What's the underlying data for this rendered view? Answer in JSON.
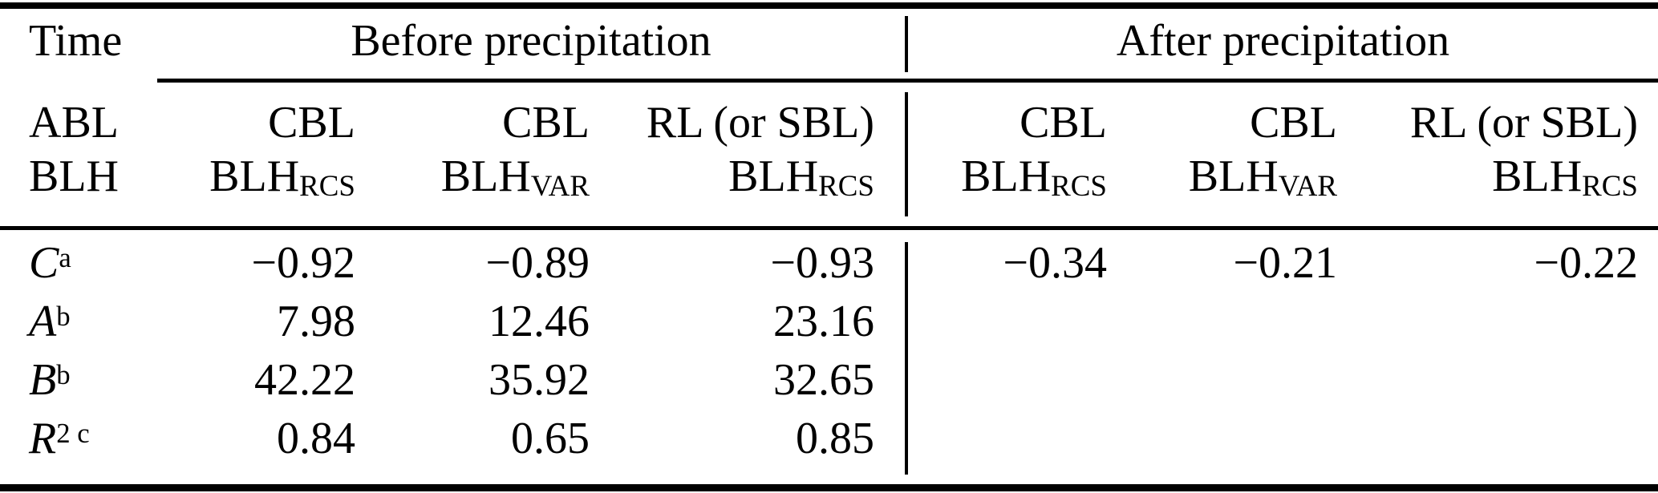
{
  "table": {
    "corner": {
      "time": "Time",
      "abl": "ABL",
      "blh": "BLH"
    },
    "groups": [
      {
        "label": "Before precipitation"
      },
      {
        "label": "After precipitation"
      }
    ],
    "columns": [
      {
        "layer": "CBL",
        "base": "BLH",
        "sub": "RCS"
      },
      {
        "layer": "CBL",
        "base": "BLH",
        "sub": "VAR"
      },
      {
        "layer": "RL (or SBL)",
        "base": "BLH",
        "sub": "RCS"
      },
      {
        "layer": "CBL",
        "base": "BLH",
        "sub": "RCS"
      },
      {
        "layer": "CBL",
        "base": "BLH",
        "sub": "VAR"
      },
      {
        "layer": "RL (or SBL)",
        "base": "BLH",
        "sub": "RCS"
      }
    ],
    "rows": [
      {
        "label": "C",
        "sup": "a",
        "values": [
          "−0.92",
          "−0.89",
          "−0.93",
          "−0.34",
          "−0.21",
          "−0.22"
        ]
      },
      {
        "label": "A",
        "sup": "b",
        "values": [
          "7.98",
          "12.46",
          "23.16",
          "",
          "",
          ""
        ]
      },
      {
        "label": "B",
        "sup": "b",
        "values": [
          "42.22",
          "35.92",
          "32.65",
          "",
          "",
          ""
        ]
      },
      {
        "label": "R",
        "sup": "2 c",
        "values": [
          "0.84",
          "0.65",
          "0.85",
          "",
          "",
          ""
        ]
      }
    ]
  },
  "chart_data": {
    "type": "table",
    "title": "",
    "row_header": [
      "Time",
      "ABL BLH"
    ],
    "column_groups": [
      "Before precipitation",
      "After precipitation"
    ],
    "columns": [
      "CBL BLH_RCS",
      "CBL BLH_VAR",
      "RL (or SBL) BLH_RCS",
      "CBL BLH_RCS",
      "CBL BLH_VAR",
      "RL (or SBL) BLH_RCS"
    ],
    "rows": [
      {
        "name": "C^a",
        "values": [
          -0.92,
          -0.89,
          -0.93,
          -0.34,
          -0.21,
          -0.22
        ]
      },
      {
        "name": "A^b",
        "values": [
          7.98,
          12.46,
          23.16,
          null,
          null,
          null
        ]
      },
      {
        "name": "B^b",
        "values": [
          42.22,
          35.92,
          32.65,
          null,
          null,
          null
        ]
      },
      {
        "name": "R^2c",
        "values": [
          0.84,
          0.65,
          0.85,
          null,
          null,
          null
        ]
      }
    ]
  }
}
